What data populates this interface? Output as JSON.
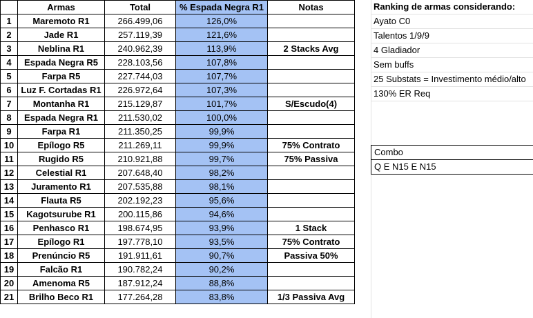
{
  "table": {
    "headers": [
      "",
      "Armas",
      "Total",
      "% Espada Negra R1",
      "Notas"
    ],
    "rows": [
      [
        "1",
        "Maremoto R1",
        "266.499,06",
        "126,0%",
        ""
      ],
      [
        "2",
        "Jade R1",
        "257.119,39",
        "121,6%",
        ""
      ],
      [
        "3",
        "Neblina R1",
        "240.962,39",
        "113,9%",
        "2 Stacks Avg"
      ],
      [
        "4",
        "Espada Negra R5",
        "228.103,56",
        "107,8%",
        ""
      ],
      [
        "5",
        "Farpa R5",
        "227.744,03",
        "107,7%",
        ""
      ],
      [
        "6",
        "Luz F. Cortadas R1",
        "226.972,64",
        "107,3%",
        ""
      ],
      [
        "7",
        "Montanha R1",
        "215.129,87",
        "101,7%",
        "S/Escudo(4)"
      ],
      [
        "8",
        "Espada Negra R1",
        "211.530,02",
        "100,0%",
        ""
      ],
      [
        "9",
        "Farpa R1",
        "211.350,25",
        "99,9%",
        ""
      ],
      [
        "10",
        "Epílogo R5",
        "211.269,11",
        "99,9%",
        "75% Contrato"
      ],
      [
        "11",
        "Rugido R5",
        "210.921,88",
        "99,7%",
        "75% Passiva"
      ],
      [
        "12",
        "Celestial R1",
        "207.648,40",
        "98,2%",
        ""
      ],
      [
        "13",
        "Juramento R1",
        "207.535,88",
        "98,1%",
        ""
      ],
      [
        "14",
        "Flauta R5",
        "202.192,23",
        "95,6%",
        ""
      ],
      [
        "15",
        "Kagotsurube R1",
        "200.115,86",
        "94,6%",
        ""
      ],
      [
        "16",
        "Penhasco R1",
        "198.674,95",
        "93,9%",
        "1 Stack"
      ],
      [
        "17",
        "Epílogo R1",
        "197.778,10",
        "93,5%",
        "75% Contrato"
      ],
      [
        "18",
        "Prenúncio R5",
        "191.911,61",
        "90,7%",
        "Passiva 50%"
      ],
      [
        "19",
        "Falcão R1",
        "190.782,24",
        "90,2%",
        ""
      ],
      [
        "20",
        "Amenoma R5",
        "187.912,24",
        "88,8%",
        ""
      ],
      [
        "21",
        "Brilho Beco R1",
        "177.264,28",
        "83,8%",
        "1/3 Passiva Avg"
      ]
    ]
  },
  "side": {
    "title": "Ranking de armas considerando:",
    "items": [
      "Ayato C0",
      "Talentos 1/9/9",
      "4 Gladiador",
      "Sem buffs",
      "25 Substats = Investimento médio/alto",
      "130% ER Req"
    ]
  },
  "combo": {
    "label": "Combo",
    "value": "Q E N15 E N15"
  },
  "colors": {
    "pct_fill": "#a4c2f4",
    "border": "#000000"
  }
}
